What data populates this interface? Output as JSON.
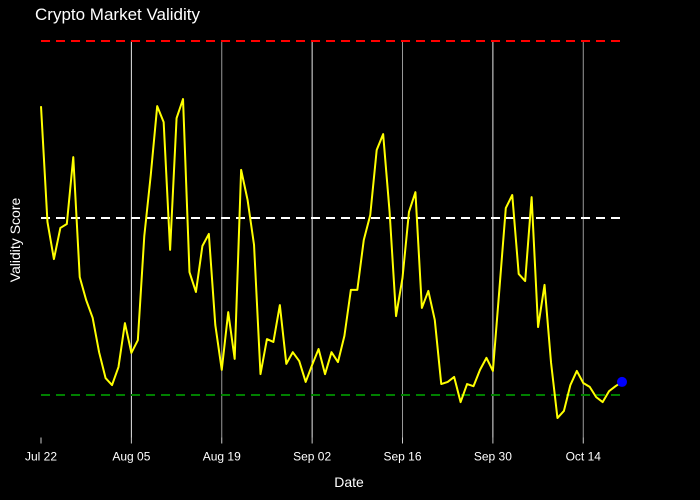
{
  "chart_data": {
    "type": "line",
    "title": "Crypto Market Validity",
    "x_label": "Date",
    "y_label": "Validity Score",
    "x": [
      "Jul 22",
      "Jul 23",
      "Jul 24",
      "Jul 25",
      "Jul 26",
      "Jul 27",
      "Jul 28",
      "Jul 29",
      "Jul 30",
      "Jul 31",
      "Aug 01",
      "Aug 02",
      "Aug 03",
      "Aug 04",
      "Aug 05",
      "Aug 06",
      "Aug 07",
      "Aug 08",
      "Aug 09",
      "Aug 10",
      "Aug 11",
      "Aug 12",
      "Aug 13",
      "Aug 14",
      "Aug 15",
      "Aug 16",
      "Aug 17",
      "Aug 18",
      "Aug 19",
      "Aug 20",
      "Aug 21",
      "Aug 22",
      "Aug 23",
      "Aug 24",
      "Aug 25",
      "Aug 26",
      "Aug 27",
      "Aug 28",
      "Aug 29",
      "Aug 30",
      "Aug 31",
      "Sep 01",
      "Sep 02",
      "Sep 03",
      "Sep 04",
      "Sep 05",
      "Sep 06",
      "Sep 07",
      "Sep 08",
      "Sep 09",
      "Sep 10",
      "Sep 11",
      "Sep 12",
      "Sep 13",
      "Sep 14",
      "Sep 15",
      "Sep 16",
      "Sep 17",
      "Sep 18",
      "Sep 19",
      "Sep 20",
      "Sep 21",
      "Sep 22",
      "Sep 23",
      "Sep 24",
      "Sep 25",
      "Sep 26",
      "Sep 27",
      "Sep 28",
      "Sep 29",
      "Sep 30",
      "Oct 01",
      "Oct 02",
      "Oct 03",
      "Oct 04",
      "Oct 05",
      "Oct 06",
      "Oct 07",
      "Oct 08",
      "Oct 09",
      "Oct 10",
      "Oct 11",
      "Oct 12",
      "Oct 13",
      "Oct 14",
      "Oct 15",
      "Oct 16",
      "Oct 17",
      "Oct 18",
      "Oct 19",
      "Oct 20"
    ],
    "series": [
      {
        "color": "#ffff00",
        "marker_last_color": "#0000ff",
        "values": [
          0.816,
          0.489,
          0.384,
          0.472,
          0.483,
          0.672,
          0.333,
          0.268,
          0.218,
          0.121,
          0.048,
          0.028,
          0.079,
          0.203,
          0.119,
          0.155,
          0.449,
          0.621,
          0.816,
          0.771,
          0.41,
          0.782,
          0.836,
          0.347,
          0.291,
          0.421,
          0.455,
          0.198,
          0.071,
          0.234,
          0.102,
          0.636,
          0.551,
          0.424,
          0.059,
          0.158,
          0.15,
          0.254,
          0.088,
          0.121,
          0.096,
          0.037,
          0.085,
          0.13,
          0.059,
          0.121,
          0.093,
          0.167,
          0.297,
          0.297,
          0.438,
          0.508,
          0.692,
          0.737,
          0.517,
          0.223,
          0.331,
          0.517,
          0.573,
          0.246,
          0.294,
          0.212,
          0.031,
          0.037,
          0.051,
          -0.02,
          0.031,
          0.025,
          0.071,
          0.105,
          0.068,
          0.297,
          0.528,
          0.565,
          0.342,
          0.322,
          0.559,
          0.192,
          0.311,
          0.093,
          -0.065,
          -0.045,
          0.028,
          0.068,
          0.034,
          0.023,
          -0.006,
          -0.02,
          0.011,
          0.025,
          0.037
        ]
      }
    ],
    "reference_lines": [
      {
        "value": 1,
        "color": "#ff0000"
      },
      {
        "value": 0.5,
        "color": "#ffffff"
      },
      {
        "value": 0,
        "color": "#008000"
      }
    ],
    "ylim": [
      -0.12,
      1
    ],
    "xticks": [
      "Jul 22",
      "Aug 05",
      "Aug 19",
      "Sep 02",
      "Sep 16",
      "Sep 30",
      "Oct 14"
    ],
    "grid": true
  }
}
